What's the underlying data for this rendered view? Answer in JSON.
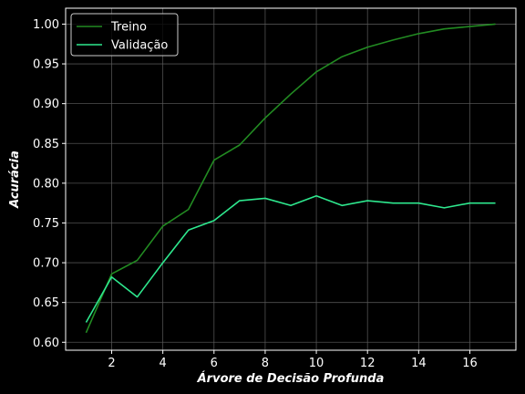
{
  "chart_data": {
    "type": "line",
    "title": "",
    "xlabel": "Árvore de Decisão Profunda",
    "ylabel": "Acurácia",
    "xlim": [
      0.2,
      17.8
    ],
    "ylim": [
      0.59,
      1.02
    ],
    "xticks": [
      2,
      4,
      6,
      8,
      10,
      12,
      14,
      16
    ],
    "yticks": [
      0.6,
      0.65,
      0.7,
      0.75,
      0.8,
      0.85,
      0.9,
      0.95,
      1.0
    ],
    "grid": true,
    "legend_position": "upper-left",
    "x": [
      1,
      2,
      3,
      4,
      5,
      6,
      7,
      8,
      9,
      10,
      11,
      12,
      13,
      14,
      15,
      16,
      17
    ],
    "series": [
      {
        "name": "Treino",
        "color": "#228b22",
        "values": [
          0.612,
          0.686,
          0.703,
          0.746,
          0.767,
          0.829,
          0.848,
          0.882,
          0.912,
          0.94,
          0.959,
          0.971,
          0.98,
          0.988,
          0.994,
          0.997,
          1.0
        ]
      },
      {
        "name": "Validação",
        "color": "#2ee88e",
        "values": [
          0.625,
          0.682,
          0.657,
          0.7,
          0.741,
          0.753,
          0.778,
          0.781,
          0.772,
          0.784,
          0.772,
          0.778,
          0.775,
          0.775,
          0.769,
          0.775,
          0.775
        ]
      }
    ]
  },
  "colors": {
    "background": "#000000",
    "axes": "#ffffff",
    "grid": "#5a5a5a"
  }
}
